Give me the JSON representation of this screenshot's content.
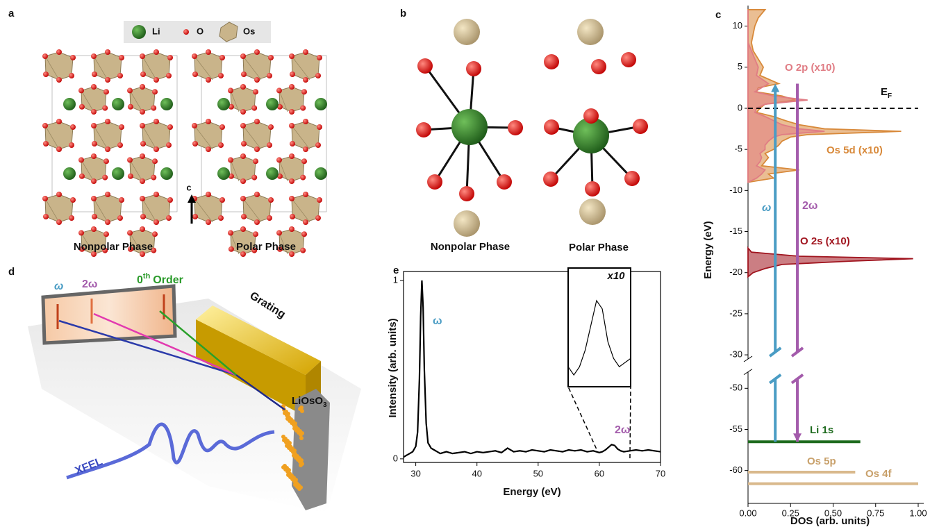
{
  "panels": {
    "a": {
      "label": "a",
      "legend": [
        "Li",
        "O",
        "Os"
      ],
      "axis": "c",
      "phases": [
        "Nonpolar Phase",
        "Polar Phase"
      ]
    },
    "b": {
      "label": "b",
      "phases": [
        "Nonpolar Phase",
        "Polar Phase"
      ]
    },
    "d": {
      "label": "d",
      "omega": "ω",
      "two_omega": "2ω",
      "order": [
        "0",
        "th",
        "Order"
      ],
      "grating": "Grating",
      "sample": [
        "LiOsO",
        "3"
      ],
      "source": "XFEL"
    }
  },
  "chart_data": [
    {
      "type": "line",
      "panel_label": "e",
      "xlabel": "Energy (eV)",
      "ylabel": "Intensity (arb. units)",
      "xlim": [
        28,
        70
      ],
      "ylim": [
        -0.02,
        1.05
      ],
      "xticks": [
        30,
        40,
        50,
        60,
        70
      ],
      "yticks": [
        0,
        1
      ],
      "x": [
        28,
        28.5,
        29,
        29.5,
        30,
        30.3,
        30.6,
        30.8,
        31,
        31.2,
        31.4,
        31.7,
        32,
        32.5,
        33,
        33.5,
        34,
        35,
        36,
        37,
        38,
        39,
        40,
        41,
        42,
        43,
        44,
        45,
        46,
        47,
        48,
        49,
        50,
        51,
        52,
        53,
        54,
        55,
        56,
        57,
        58,
        59,
        59.5,
        60,
        60.5,
        61,
        61.5,
        62,
        62.5,
        63,
        63.5,
        64,
        65,
        66,
        67,
        68,
        69,
        70
      ],
      "series": [
        {
          "color": "#000000",
          "values": [
            0.01,
            0.02,
            0.03,
            0.04,
            0.07,
            0.15,
            0.45,
            0.8,
            1.0,
            0.85,
            0.5,
            0.2,
            0.09,
            0.06,
            0.05,
            0.04,
            0.03,
            0.04,
            0.03,
            0.035,
            0.04,
            0.03,
            0.04,
            0.035,
            0.04,
            0.045,
            0.035,
            0.06,
            0.04,
            0.045,
            0.04,
            0.05,
            0.045,
            0.04,
            0.05,
            0.045,
            0.04,
            0.05,
            0.045,
            0.05,
            0.04,
            0.045,
            0.04,
            0.035,
            0.04,
            0.05,
            0.065,
            0.08,
            0.075,
            0.055,
            0.045,
            0.04,
            0.045,
            0.05,
            0.045,
            0.05,
            0.045,
            0.04
          ]
        }
      ],
      "annotations": [
        {
          "text": "ω",
          "color": "#4a9cc4"
        },
        {
          "text": "2ω",
          "color": "#a35bab"
        }
      ],
      "inset": {
        "label": "x10",
        "xlim": [
          59.5,
          65
        ],
        "ylim": [
          0.03,
          0.085
        ]
      }
    },
    {
      "type": "dos",
      "panel_label": "c",
      "xlabel": "DOS  (arb. units)",
      "ylabel": "Energy (eV)",
      "xlim": [
        0,
        1.05
      ],
      "ylim": [
        -64,
        12.5
      ],
      "axis_break": [
        -30.5,
        -48
      ],
      "xticks": [
        {
          "value": 0,
          "label": "0.00"
        },
        {
          "value": 0.25,
          "label": "0.25"
        },
        {
          "value": 0.5,
          "label": "0.50"
        },
        {
          "value": 0.75,
          "label": "0.75"
        },
        {
          "value": 1,
          "label": "1.00"
        }
      ],
      "yticks": [
        10,
        5,
        0,
        -5,
        -10,
        -15,
        -20,
        -25,
        -30,
        -50,
        -55,
        -60
      ],
      "series": [
        {
          "name": "Os 5d (x10)",
          "color": "#d8893a",
          "energy": [
            12,
            11,
            10,
            9,
            8,
            7,
            6,
            5,
            4,
            3,
            2.5,
            2,
            1.5,
            1,
            0.5,
            0,
            -0.5,
            -1,
            -1.5,
            -2,
            -2.5,
            -2.8,
            -3.2,
            -3.5,
            -4,
            -4.5,
            -5,
            -5.5,
            -6,
            -6.5,
            -7,
            -7.5,
            -8,
            -8.5,
            -9
          ],
          "values": [
            0.1,
            0.06,
            0.04,
            0.03,
            0.02,
            0.03,
            0.06,
            0.09,
            0.07,
            0.18,
            0.06,
            0.05,
            0.2,
            0.28,
            0.1,
            0.07,
            0.05,
            0.15,
            0.22,
            0.3,
            0.45,
            0.9,
            0.35,
            0.25,
            0.2,
            0.18,
            0.15,
            0.1,
            0.12,
            0.1,
            0.08,
            0.3,
            0.12,
            0.15,
            0
          ]
        },
        {
          "name": "O 2p (x10)",
          "color": "#e07c84",
          "energy": [
            12,
            11,
            10,
            9,
            8,
            7,
            6,
            5,
            4,
            3,
            2.5,
            2,
            1.5,
            1,
            0.5,
            0,
            -0.5,
            -1,
            -1.5,
            -2,
            -2.5,
            -2.8,
            -3.2,
            -3.5,
            -4,
            -4.5,
            -5,
            -5.5,
            -6,
            -6.5,
            -7,
            -7.5,
            -8,
            -8.5,
            -9
          ],
          "values": [
            0,
            0,
            0,
            0,
            0,
            0.02,
            0.04,
            0.06,
            0.05,
            0.12,
            0.08,
            0.04,
            0.15,
            0.35,
            0.1,
            0.05,
            0.04,
            0.1,
            0.15,
            0.2,
            0.3,
            0.45,
            0.2,
            0.15,
            0.12,
            0.1,
            0.1,
            0.07,
            0.08,
            0.07,
            0.05,
            0.1,
            0.08,
            0.05,
            0
          ]
        },
        {
          "name": "O 2s (x10)",
          "color": "#a0141e",
          "energy": [
            -17,
            -17.5,
            -18,
            -18.3,
            -18.6,
            -19,
            -19.5,
            -20,
            -20.5
          ],
          "values": [
            0,
            0.02,
            0.3,
            0.97,
            0.6,
            0.2,
            0.1,
            0.03,
            0
          ]
        }
      ],
      "levels": [
        {
          "name": "Li 1s",
          "color": "#1f6b1f",
          "energy": -56.5,
          "value": 0.66
        },
        {
          "name": "Os 5p",
          "color": "#d9b98c",
          "energy": -60.2,
          "value": 0.63
        },
        {
          "name": "Os 4f",
          "color": "#d9b98c",
          "energy": -61.6,
          "value": 1.0
        }
      ],
      "arrows": [
        {
          "label": "ω",
          "color": "#4a9cc4",
          "dos": 0.16,
          "from": -56.5,
          "to": 3
        },
        {
          "label": "2ω",
          "color": "#a35bab",
          "dos": 0.29,
          "from": 3,
          "to": -56.5
        }
      ],
      "fermi": {
        "label": [
          "E",
          "F"
        ],
        "energy": 0
      }
    }
  ]
}
